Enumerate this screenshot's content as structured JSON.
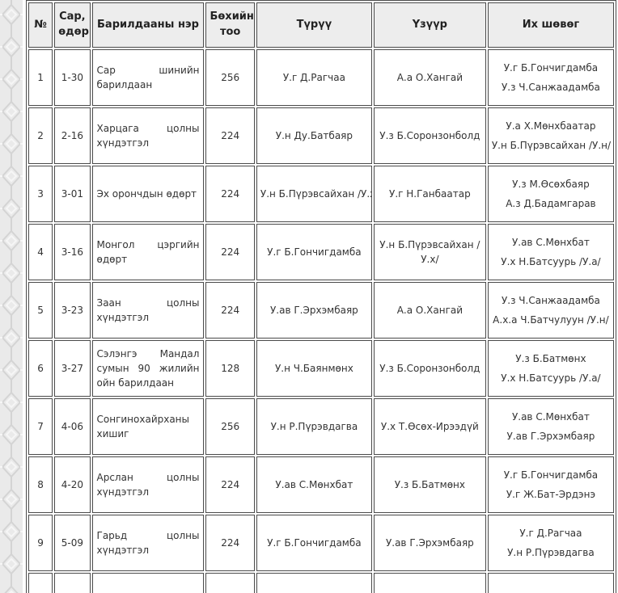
{
  "colors": {
    "border-color": "#4a4a4a",
    "text-color": "#333333",
    "header-bg": "#ededed",
    "strip-bg": "#eaeaea",
    "strip-motif": "#d4d4d4"
  },
  "decoration": {
    "left_strip": "mongolian-ulzii-pattern"
  },
  "chart_data": {
    "type": "table",
    "columns": [
      "№",
      "Сар, өдөр",
      "Барилдааны нэр",
      "Бөхийн тоо",
      "Түрүү",
      "Үзүүр",
      "Их шөвөг"
    ],
    "rows": [
      {
        "no": "1",
        "date": "1-30",
        "name": "Сар шинийн барилдаан",
        "count": "256",
        "turuu": "У.г Д.Рагчаа",
        "uzuur": "А.а О.Хангай",
        "shuvug": [
          "У.г Б.Гончигдамба",
          "У.з Ч.Санжаадамба"
        ]
      },
      {
        "no": "2",
        "date": "2-16",
        "name": "Харцага цолны хүндэтгэл",
        "count": "224",
        "turuu": "У.н Ду.Батбаяр",
        "uzuur": "У.з Б.Соронзонболд",
        "shuvug": [
          "У.а Х.Мөнхбаатар",
          "У.н Б.Пүрэвсайхан /У.н/"
        ]
      },
      {
        "no": "3",
        "date": "3-01",
        "name": "Эх орончдын өдөрт",
        "count": "224",
        "turuu": "У.н Б.Пүрэвсайхан /У.х/",
        "uzuur": "У.г Н.Ганбаатар",
        "shuvug": [
          "У.з М.Өсөхбаяр",
          "А.з Д.Бадамгарав"
        ]
      },
      {
        "no": "4",
        "date": "3-16",
        "name": "Монгол цэргийн өдөрт",
        "count": "224",
        "turuu": "У.г Б.Гончигдамба",
        "uzuur": "У.н Б.Пүрэвсайхан /У.х/",
        "shuvug": [
          "У.ав С.Мөнхбат",
          "У.х Н.Батсуурь /У.а/"
        ]
      },
      {
        "no": "5",
        "date": "3-23",
        "name": "Заан цолны хүндэтгэл",
        "count": "224",
        "turuu": "У.ав Г.Эрхэмбаяр",
        "uzuur": "А.а О.Хангай",
        "shuvug": [
          "У.з Ч.Санжаадамба",
          "А.х.а Ч.Батчулуун /У.н/"
        ]
      },
      {
        "no": "6",
        "date": "3-27",
        "name": "Сэлэнгэ Мандал сумын 90 жилийн ойн барилдаан",
        "count": "128",
        "turuu": "У.н Ч.Баянмөнх",
        "uzuur": "У.з Б.Соронзонболд",
        "shuvug": [
          "У.з Б.Батмөнх",
          "У.х Н.Батсуурь /У.а/"
        ]
      },
      {
        "no": "7",
        "date": "4-06",
        "name": "Сонгинохайрханы хишиг",
        "count": "256",
        "turuu": "У.н Р.Пүрэвдагва",
        "uzuur": "У.х Т.Өсөх-Ирээдүй",
        "shuvug": [
          "У.ав С.Мөнхбат",
          "У.ав Г.Эрхэмбаяр"
        ]
      },
      {
        "no": "8",
        "date": "4-20",
        "name": "Арслан цолны хүндэтгэл",
        "count": "224",
        "turuu": "У.ав С.Мөнхбат",
        "uzuur": "У.з Б.Батмөнх",
        "shuvug": [
          "У.г Б.Гончигдамба",
          "У.г Ж.Бат-Эрдэнэ"
        ]
      },
      {
        "no": "9",
        "date": "5-09",
        "name": "Гарьд цолны хүндэтгэл",
        "count": "224",
        "turuu": "У.г Б.Гончигдамба",
        "uzuur": "У.ав Г.Эрхэмбаяр",
        "shuvug": [
          "У.г Д.Рагчаа",
          "У.н Р.Пүрэвдагва"
        ]
      }
    ]
  }
}
